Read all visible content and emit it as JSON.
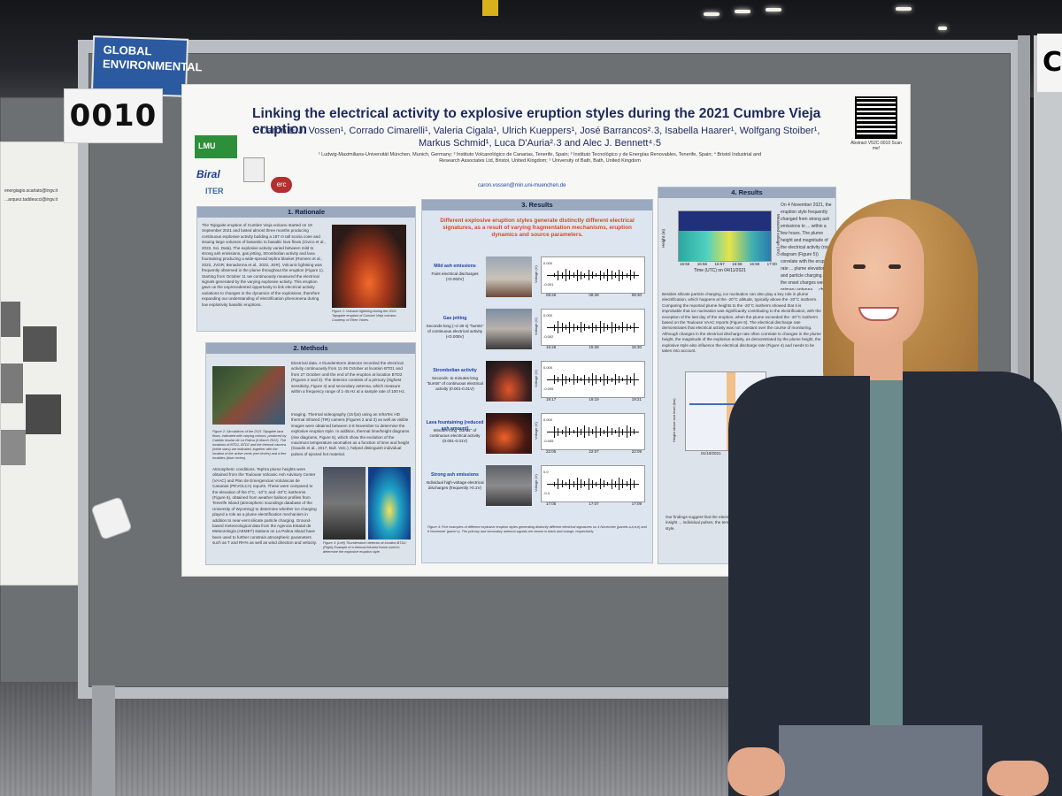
{
  "sign": {
    "number": "0010",
    "banner": "GLOBAL ENVIRONMENTAL"
  },
  "right_sign_partial": "C",
  "poster": {
    "title": "Linking the electrical activity to explosive eruption styles during the 2021 Cumbre Vieja eruption",
    "authors_line1": "Caron E.J. Vossen¹, Corrado Cimarelli¹, Valeria Cigala¹, Ulrich Kueppers¹, José Barrancos²˒3, Isabella Haarer¹, Wolfgang Stoiber¹,",
    "authors_line2": "Markus Schmid¹, Luca D'Auria²˒3 and Alec J. Bennett⁴˒5",
    "affiliations": "¹ Ludwig-Maximilians-Universität München, Munich, Germany; ² Instituto Volcanológico de Canarias, Tenerife, Spain; ³ Instituto Tecnológico y de Energías Renovables, Tenerife, Spain; ⁴ Bristol Industrial and Research Associates Ltd, Bristol, United Kingdom; ⁵ University of Bath, Bath, United Kingdom",
    "email": "caron.vossen@min.uni-muenchen.de",
    "logos": [
      "LMU",
      "Biral",
      "ITER",
      "erc"
    ],
    "qr_caption": "Abstract V52C-0010 Scan me!",
    "sections": {
      "rationale": {
        "heading": "1. Rationale",
        "text": "The Tajogaite eruption of Cumbre Vieja volcano started on 19 September 2021 and lasted almost three months producing continuous explosive activity building a 187 m tall scoria cone and issuing large volumes of basanitic to basaltic lava flows (Civico et al., 2022, Sci. Data). The explosive activity varied between mild to strong ash emissions, gas jetting, Strombolian activity and lava fountaining producing a wide-spread tephra blanket (Romero et al., 2022, JVGR; Bonadonna et al., 2022, JGR). Volcanic lightning was frequently observed in the plume throughout the eruption (Figure 1). Starting from October 11 we continuously measured the electrical signals generated by the varying explosive activity. This eruption gave us the unprecedented opportunity to link electrical activity variations to changes in the dynamics of the explosions, therefore expanding our understanding of electrification phenomena during low explosivity basaltic eruptions.",
        "caption": "Figure 1: Volcanic lightning during the 2021 Tajogaite eruption of Cumbre Vieja volcano. Courtesy of Efren Yanes."
      },
      "methods": {
        "heading": "2. Methods",
        "text_a": "Electrical data. A thunderstorm detector recorded the electrical activity continuously from 11-26 October at location BTD1 and from 27 October until the end of the eruption at location BTD2 (Figures 2 and 3). The detector consists of a primary (highest sensitivity, Figure 4) and secondary antenna, which measure within a frequency range of 1-45 Hz at a sample rate of 100 Hz.",
        "text_b": "Imaging. Thermal videography (15 fps) using an InfraTec HD thermal infrared (TIR) camera (Figures 2 and 3) as well as visible images were obtained between 3-8 November to determine the explosive eruption style. In addition, thermal time/height diagrams (rise diagrams, Figure 5), which show the evolution of the maximum temperature anomalies as a function of time and height (Gaudin et al., 2017, Bull. Volc.), helped distinguish individual pulses of ejected hot material.",
        "text_c": "Atmospheric conditions. Tephra plume heights were obtained from the Toulouse Volcanic Ash Advisory Center (VAAC) and Plan de Emergencias Volcánicas de Canarias (PEVOLCA) reports. These were compared to the elevation of the 0°C, -10°C and -20°C isotherms (Figure 6), obtained from weather balloon profiles from Tenerife Island (atmospheric soundings database of the University of Wyoming) to determine whether ice charging played a role as a plume electrification mechanism in addition to near-vent silicate particle charging. Ground-based meteorological data from the Agencia Estatal de Meteorología (AEMET) stations on La Palma Island have been used to further constrain atmospheric parameters such as T and RH% as well as wind direction and velocity.",
        "caption_map": "Figure 2: Simulations of the 2021 Tajogaite lava flows, indicated with varying colours, produced by Cabildo Insular de La Palma (4 March 2022). The locations of BTD1, BTD2 and the thermal camera (white stars) are indicated, together with the location of the active vents (red circles) and a few localities (blue circles).",
        "caption_tir": "Figure 3: (Left) Thunderstorm detector at location BTD2; (Right) Example of a thermal infrared frame used to determine the explosive eruption style."
      },
      "results": {
        "heading": "3. Results",
        "lead": "Different explosive eruption styles generate distinctly different electrical signatures, as a result of varying fragmentation mechanisms, eruption dynamics and source parameters.",
        "rows": [
          {
            "name": "Mild ash emissions",
            "desc": "Faint electrical discharges (<0.002V)",
            "ticks": [
              "08:26",
              "08:28",
              "08:30"
            ],
            "y": [
              "0.000",
              "-0.001"
            ]
          },
          {
            "name": "Gas jetting",
            "desc": "Seconds-long (~2-30 s) \"bursts\" of continuous electrical activity (<0.005V)",
            "ticks": [
              "15:26",
              "15:28",
              "15:30"
            ],
            "y": [
              "0.000",
              "-0.002"
            ]
          },
          {
            "name": "Strombolian activity",
            "desc": "Seconds- to minutes-long \"bursts\" of continuous electrical activity (0.001-0.01V)",
            "ticks": [
              "19:17",
              "19:19",
              "19:21"
            ],
            "y": [
              "0.000",
              "-0.005"
            ]
          },
          {
            "name": "Lava fountaining (reduced ash amount)",
            "desc": "Minutes-long \"bursts\" of continuous electrical activity (0.001-0.01V)",
            "ticks": [
              "22:05",
              "22:07",
              "22:09"
            ],
            "y": [
              "0.000",
              "-0.005"
            ]
          },
          {
            "name": "Strong ash emissions",
            "desc": "Individual high-voltage electrical discharges (frequently >0.1V)",
            "ticks": [
              "17:05",
              "17:07",
              "17:09"
            ],
            "y": [
              "0.0",
              "-0.4"
            ]
          }
        ],
        "ylabel": "Voltage (V)",
        "caption": "Figure 4: Five examples of different explosive eruption styles generating distinctly different electrical signatures on 4 November (panels a,b,d,e) and 6 November (panel c). The primary and secondary antenna signals are shown in black and orange, respectively."
      },
      "results4": {
        "heading": "4. Results",
        "text_top": "On 4 November 2021, the eruption style frequently changed from strong ash emissions to ... within a few hours. The plume height and magnitude of the electrical activity (rise diagram (Figure 5)) correlate with the eruption rate ... plume elevation and particle charging. At the onset charges were ... primary antenna ... change in plume dynamics.",
        "spectro_ticks": [
          "16:55",
          "16:56",
          "16:57",
          "16:58",
          "16:59",
          "17:00"
        ],
        "spectro_xlabel": "Time (UTC) on 04/11/2021",
        "spectro_ylabel": "Height (m)",
        "spectro_rlabel": "Measured voltage (mV)",
        "text_mid": "Besides silicate particle charging, ice nucleation can also play a key role in plume electrification, which happens at the -20°C altitude, typically above the -20°C isotherm. Comparing the reported plume heights to the -20°C isotherm showed that it is improbable that ice nucleation was significantly contributing to the electrification, with the exception of the last day of the eruption, when the plume exceeded the -20°C isotherm based on the Toulouse VAAC reports (Figure 6). The electrical discharge rate demonstrates that electrical activity was not constant over the course of monitoring. Although changes in the electrical discharge rate often correlate to changes in the plume height, the magnitude of the explosive activity, as demonstrated by the plume height, the explosive style also influence the electrical discharge rate (Figure 4) and needs to be taken into account.",
        "chart_date": "01/10/2021",
        "chart_ylabel": "Height above sea level (km)",
        "bullets": "Our findings suggest that the electrical signature that is ... Rise diagrams can give insight ... individual pulses, the temperature ... The electrical discharge rate ... eruption style."
      }
    }
  },
  "left_poster": {
    "lines": [
      "energiagio.scarlato@ingv.it",
      "...arquez.taddeucci@ingv.it"
    ]
  },
  "colors": {
    "poster_title": "#1c2a5e",
    "section_head": "#9aa9bd",
    "results_lead": "#d9472b",
    "jacket": "#262b38",
    "banner": "#2b5aa0"
  }
}
